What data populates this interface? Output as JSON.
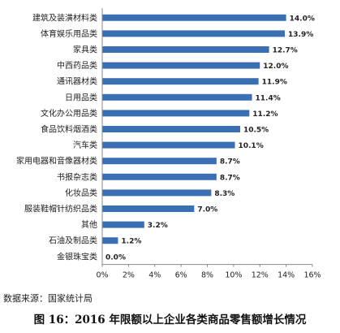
{
  "chart_data": {
    "type": "bar",
    "orientation": "horizontal",
    "categories": [
      "建筑及装潢材料类",
      "体育娱乐用品类",
      "家具类",
      "中西药品类",
      "通讯器材类",
      "日用品类",
      "文化办公用品类",
      "食品饮料烟酒类",
      "汽车类",
      "家用电器和音像器材类",
      "书报杂志类",
      "化妆品类",
      "服装鞋帽针纺织品类",
      "其他",
      "石油及制品类",
      "金银珠宝类"
    ],
    "values": [
      14.0,
      13.9,
      12.7,
      12.0,
      11.9,
      11.4,
      11.2,
      10.5,
      10.1,
      8.7,
      8.7,
      8.3,
      7.0,
      3.2,
      1.2,
      0.0
    ],
    "value_labels": [
      "14.0%",
      "13.9%",
      "12.7%",
      "12.0%",
      "11.9%",
      "11.4%",
      "11.2%",
      "10.5%",
      "10.1%",
      "8.7%",
      "8.7%",
      "8.3%",
      "7.0%",
      "3.2%",
      "1.2%",
      "0.0%"
    ],
    "xticks": [
      "0%",
      "2%",
      "4%",
      "6%",
      "8%",
      "10%",
      "12%",
      "14%",
      "16%"
    ],
    "xlim": [
      0,
      16
    ],
    "bar_color": "#3B6FB3",
    "grid": false,
    "legend": false
  },
  "source": "数据来源：国家统计局",
  "caption": "图 16：2016 年限额以上企业各类商品零售额增长情况"
}
